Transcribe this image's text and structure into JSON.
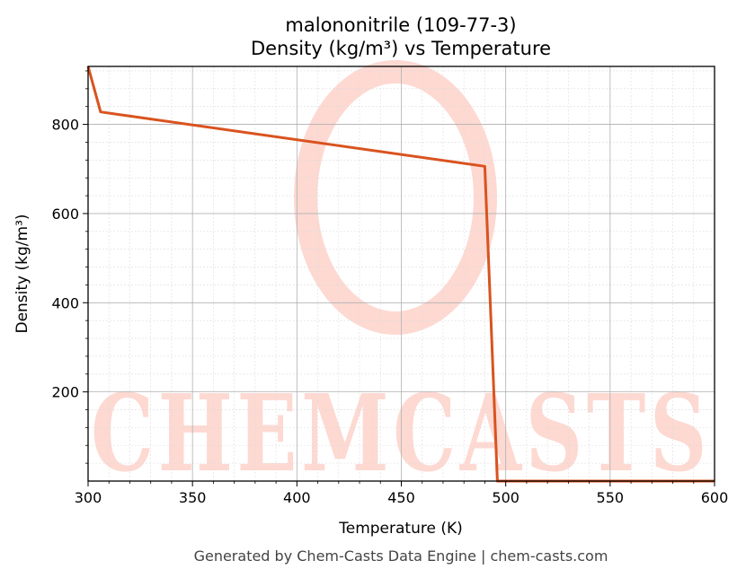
{
  "chart_data": {
    "type": "line",
    "title": "malononitrile (109-77-3)",
    "subtitle": "Density (kg/m³) vs Temperature",
    "xlabel": "Temperature (K)",
    "ylabel": "Density (kg/m³)",
    "xlim": [
      300,
      600
    ],
    "ylim": [
      0,
      930
    ],
    "x_ticks": [
      300,
      350,
      400,
      450,
      500,
      550,
      600
    ],
    "y_ticks": [
      200,
      400,
      600,
      800
    ],
    "grid": true,
    "series": [
      {
        "color": "#d9531e",
        "x": [
          300,
          306,
          490,
          496,
          600
        ],
        "y": [
          930,
          828,
          706,
          0,
          0
        ]
      }
    ]
  },
  "watermark": {
    "text": "CHEMCASTS",
    "color": "#fdd9d2"
  },
  "footer": "Generated by Chem-Casts Data Engine | chem-casts.com"
}
